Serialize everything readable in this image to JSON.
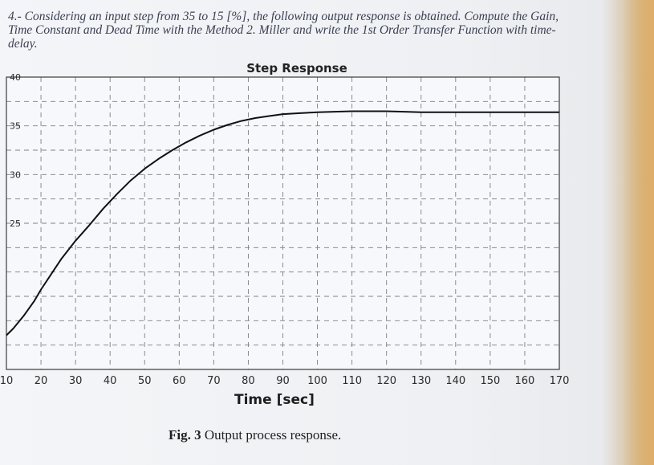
{
  "question": {
    "text": "4.- Considering an input step from 35 to 15 [%], the following output response is obtained. Compute the Gain, Time Constant and Dead Time with the Method 2. Miller and write the 1st Order Transfer Function with time-delay."
  },
  "caption": {
    "prefix": "Fig. 3",
    "text": " Output process response."
  },
  "chart_data": {
    "type": "line",
    "title": "Step Response",
    "xlabel": "Time [sec]",
    "ylabel": "",
    "xlim": [
      10,
      170
    ],
    "ylim": [
      10,
      40
    ],
    "x_ticks": [
      10,
      20,
      30,
      40,
      50,
      60,
      70,
      80,
      90,
      100,
      110,
      120,
      130,
      140,
      150,
      160,
      170
    ],
    "y_ticks_labeled": [
      40,
      35,
      30,
      25
    ],
    "grid": true,
    "series": [
      {
        "color": "#111111",
        "x": [
          10,
          12,
          15,
          18,
          20,
          23,
          26,
          30,
          34,
          38,
          42,
          46,
          50,
          54,
          58,
          62,
          66,
          70,
          74,
          78,
          82,
          86,
          90,
          95,
          100,
          105,
          110,
          115,
          120,
          125,
          130,
          140,
          150,
          160,
          170
        ],
        "y": [
          13.5,
          14.2,
          15.5,
          17.0,
          18.2,
          19.8,
          21.4,
          23.2,
          24.8,
          26.5,
          28.0,
          29.4,
          30.6,
          31.6,
          32.5,
          33.3,
          34.0,
          34.6,
          35.1,
          35.5,
          35.8,
          36.0,
          36.2,
          36.3,
          36.4,
          36.45,
          36.5,
          36.5,
          36.5,
          36.45,
          36.4,
          36.4,
          36.4,
          36.4,
          36.4
        ]
      }
    ]
  }
}
